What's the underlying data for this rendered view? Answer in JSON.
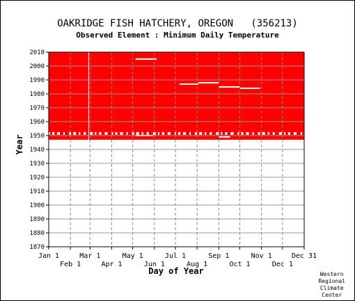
{
  "chart_data": {
    "type": "heatmap",
    "title": "OAKRIDGE FISH HATCHERY, OREGON   (356213)",
    "subtitle": "Observed Element : Minimum Daily Temperature",
    "xlabel": "Day of Year",
    "ylabel": "Year",
    "ylim": [
      1870,
      2010
    ],
    "yticks": [
      1870,
      1880,
      1890,
      1900,
      1910,
      1920,
      1930,
      1940,
      1950,
      1960,
      1970,
      1980,
      1990,
      2000,
      2010
    ],
    "xlim": [
      1,
      366
    ],
    "x_month_ticks_row1": [
      {
        "label": "Jan 1",
        "day": 1
      },
      {
        "label": "Mar 1",
        "day": 60
      },
      {
        "label": "May 1",
        "day": 121
      },
      {
        "label": "Jul 1",
        "day": 182
      },
      {
        "label": "Sep 1",
        "day": 244
      },
      {
        "label": "Nov 1",
        "day": 305
      },
      {
        "label": "Dec 31",
        "day": 366
      }
    ],
    "x_month_ticks_row2": [
      {
        "label": "Feb 1",
        "day": 32
      },
      {
        "label": "Apr 1",
        "day": 91
      },
      {
        "label": "Jun 1",
        "day": 152
      },
      {
        "label": "Aug 1",
        "day": 213
      },
      {
        "label": "Oct 1",
        "day": 274
      },
      {
        "label": "Dec 1",
        "day": 335
      }
    ],
    "grid": true,
    "data_color": "#ff0000",
    "background_color": "#ffffff",
    "observed_period": {
      "start_year": 1947,
      "end_year": 2010,
      "start_day": 1,
      "end_day": 366
    },
    "missing_segments": [
      {
        "year": 2005,
        "day_start": 125,
        "day_end": 155
      },
      {
        "year": 1987,
        "day_start": 188,
        "day_end": 215
      },
      {
        "year": 1988,
        "day_start": 215,
        "day_end": 244
      },
      {
        "year": 1985,
        "day_start": 244,
        "day_end": 274
      },
      {
        "year": 1984,
        "day_start": 274,
        "day_end": 303
      },
      {
        "year": 1952,
        "day_start": 1,
        "day_end": 366,
        "partial": true
      },
      {
        "year": 1951,
        "day_start": 1,
        "day_end": 366,
        "partial": true
      },
      {
        "year": 1950,
        "day_start": 125,
        "day_end": 150
      },
      {
        "year": 1949,
        "day_start": 244,
        "day_end": 260
      }
    ],
    "missing_column_day": 58
  },
  "credit": [
    "Western",
    "Regional",
    "Climate",
    "Center"
  ]
}
